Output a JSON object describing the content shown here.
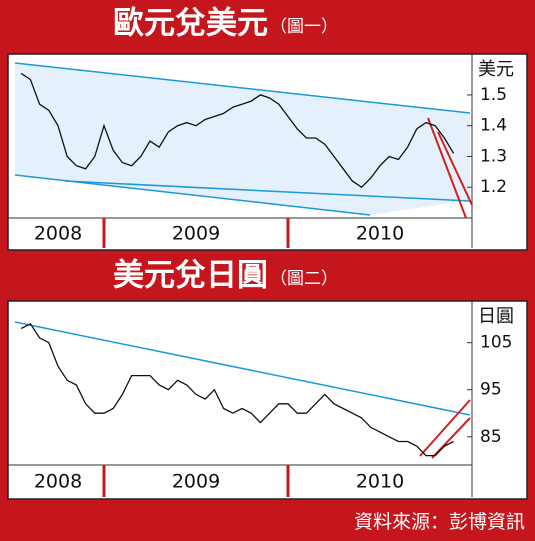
{
  "chart_data": [
    {
      "type": "line",
      "title": "歐元兌美元",
      "subtitle": "（圖一）",
      "y_label": "美元",
      "color": "#111111",
      "x": [
        2008.55,
        2008.6,
        2008.65,
        2008.7,
        2008.75,
        2008.8,
        2008.85,
        2008.9,
        2008.95,
        2009.0,
        2009.05,
        2009.1,
        2009.15,
        2009.2,
        2009.25,
        2009.3,
        2009.35,
        2009.4,
        2009.45,
        2009.5,
        2009.55,
        2009.6,
        2009.65,
        2009.7,
        2009.75,
        2009.8,
        2009.85,
        2009.9,
        2009.95,
        2010.0,
        2010.05,
        2010.1,
        2010.15,
        2010.2,
        2010.25,
        2010.3,
        2010.35,
        2010.4,
        2010.45,
        2010.5,
        2010.55,
        2010.6,
        2010.65,
        2010.7,
        2010.75,
        2010.8,
        2010.85,
        2010.9
      ],
      "values": [
        1.57,
        1.55,
        1.47,
        1.45,
        1.4,
        1.3,
        1.27,
        1.26,
        1.3,
        1.4,
        1.32,
        1.28,
        1.27,
        1.3,
        1.35,
        1.33,
        1.38,
        1.4,
        1.41,
        1.4,
        1.42,
        1.43,
        1.44,
        1.46,
        1.47,
        1.48,
        1.5,
        1.49,
        1.47,
        1.43,
        1.39,
        1.36,
        1.36,
        1.34,
        1.3,
        1.26,
        1.22,
        1.2,
        1.23,
        1.27,
        1.3,
        1.29,
        1.33,
        1.39,
        1.41,
        1.4,
        1.36,
        1.31
      ],
      "xlim": [
        2008.5,
        2011.0
      ],
      "ylim": [
        1.1,
        1.62
      ],
      "yticks": [
        1.2,
        1.3,
        1.4,
        1.5
      ],
      "x_labels": [
        "2008",
        "2009",
        "2010"
      ]
    },
    {
      "type": "line",
      "title": "美元兌日圓",
      "subtitle": "（圖二）",
      "y_label": "日圓",
      "color": "#111111",
      "x": [
        2008.55,
        2008.6,
        2008.65,
        2008.7,
        2008.75,
        2008.8,
        2008.85,
        2008.9,
        2008.95,
        2009.0,
        2009.05,
        2009.1,
        2009.15,
        2009.2,
        2009.25,
        2009.3,
        2009.35,
        2009.4,
        2009.45,
        2009.5,
        2009.55,
        2009.6,
        2009.65,
        2009.7,
        2009.75,
        2009.8,
        2009.85,
        2009.9,
        2009.95,
        2010.0,
        2010.05,
        2010.1,
        2010.15,
        2010.2,
        2010.25,
        2010.3,
        2010.35,
        2010.4,
        2010.45,
        2010.5,
        2010.55,
        2010.6,
        2010.65,
        2010.7,
        2010.75,
        2010.8,
        2010.85,
        2010.9
      ],
      "values": [
        108,
        109,
        106,
        105,
        100,
        97,
        96,
        92,
        90,
        90,
        91,
        94,
        98,
        98,
        98,
        96,
        95,
        97,
        96,
        94,
        93,
        95,
        91,
        90,
        91,
        90,
        88,
        90,
        92,
        92,
        90,
        90,
        92,
        94,
        92,
        91,
        90,
        89,
        87,
        86,
        85,
        84,
        84,
        83,
        81,
        81,
        83,
        84
      ],
      "xlim": [
        2008.5,
        2011.0
      ],
      "ylim": [
        79,
        113
      ],
      "yticks": [
        85,
        95,
        105
      ],
      "x_labels": [
        "2008",
        "2009",
        "2010"
      ]
    }
  ],
  "source": "資料來源：彭博資訊"
}
